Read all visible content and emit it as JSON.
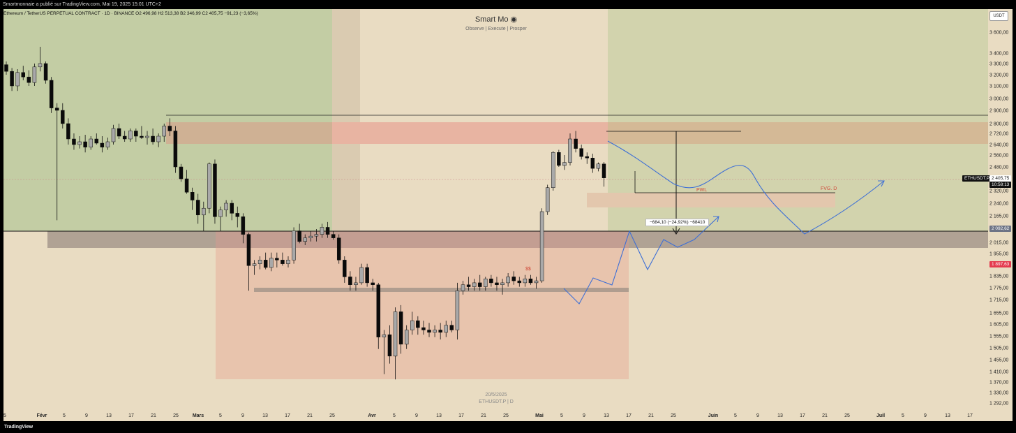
{
  "header": {
    "published": "Smartmonnaie a publié sur TradingView.com, Mai 19, 2025 15:01 UTC+2"
  },
  "symbol": {
    "title": "Ethereum / TetherUS PERPETUAL CONTRACT · 1D · BINANCE   O2 496,98   H2 513,38   B2 346,99   C2 405,75   −91,23 (−3,65%)"
  },
  "watermark": {
    "brand": "Smart Mo ◉",
    "tagline": "Observe |  Execute |  Prosper",
    "date": "20/5/2025",
    "symbol_tf": "ETHUSDT.P | D"
  },
  "ui": {
    "currency": "USDT"
  },
  "annotations": {
    "pwl": "PWL",
    "fvg": "FVG. D",
    "ss": "$$",
    "measure": "−684,10 (−24,92%) −68410"
  },
  "price_tags": {
    "symbol": "ETHUSDT.P",
    "last": "2 405,75",
    "countdown": "10:58:13",
    "level_grey": "2 092,62",
    "level_red": "1 897,63"
  },
  "footer": {
    "brand": "TradingView"
  },
  "colors": {
    "bull": "#a9a9a9",
    "bear": "#0a0a0a",
    "projection": "#3d6fd6",
    "zone_green": "#c3cda4",
    "zone_red": "#e8c4ad",
    "annotation": "#d04a3a"
  },
  "chart_data": {
    "type": "candlestick",
    "title": "Ethereum / TetherUS PERPETUAL CONTRACT · 1D · BINANCE",
    "xlabel": "",
    "ylabel": "",
    "ylim": [
      1230,
      3700
    ],
    "y_ticks": [
      "3 600,00",
      "3 400,00",
      "3 300,00",
      "3 200,00",
      "3 100,00",
      "3 000,00",
      "2 900,00",
      "2 800,00",
      "2 720,00",
      "2 640,00",
      "2 560,00",
      "2 480,00",
      "2 400,00",
      "2 320,00",
      "2 240,00",
      "2 165,00",
      "2 090,00",
      "2 015,00",
      "1 955,00",
      "1 895,00",
      "1 835,00",
      "1 775,00",
      "1 715,00",
      "1 655,00",
      "1 605,00",
      "1 555,00",
      "1 505,00",
      "1 455,00",
      "1 410,00",
      "1 370,00",
      "1 330,00",
      "1 292,00"
    ],
    "x_ticks": [
      {
        "label": "5",
        "major": false
      },
      {
        "label": "Févr",
        "major": true
      },
      {
        "label": "5",
        "major": false
      },
      {
        "label": "9",
        "major": false
      },
      {
        "label": "13",
        "major": false
      },
      {
        "label": "17",
        "major": false
      },
      {
        "label": "21",
        "major": false
      },
      {
        "label": "25",
        "major": false
      },
      {
        "label": "Mars",
        "major": true
      },
      {
        "label": "5",
        "major": false
      },
      {
        "label": "9",
        "major": false
      },
      {
        "label": "13",
        "major": false
      },
      {
        "label": "17",
        "major": false
      },
      {
        "label": "21",
        "major": false
      },
      {
        "label": "25",
        "major": false
      },
      {
        "label": "Avr",
        "major": true
      },
      {
        "label": "5",
        "major": false
      },
      {
        "label": "9",
        "major": false
      },
      {
        "label": "13",
        "major": false
      },
      {
        "label": "17",
        "major": false
      },
      {
        "label": "21",
        "major": false
      },
      {
        "label": "25",
        "major": false
      },
      {
        "label": "Mai",
        "major": true
      },
      {
        "label": "5",
        "major": false
      },
      {
        "label": "9",
        "major": false
      },
      {
        "label": "13",
        "major": false
      },
      {
        "label": "17",
        "major": false
      },
      {
        "label": "21",
        "major": false
      },
      {
        "label": "25",
        "major": false
      },
      {
        "label": "Juin",
        "major": true
      },
      {
        "label": "5",
        "major": false
      },
      {
        "label": "9",
        "major": false
      },
      {
        "label": "13",
        "major": false
      },
      {
        "label": "17",
        "major": false
      },
      {
        "label": "21",
        "major": false
      },
      {
        "label": "25",
        "major": false
      },
      {
        "label": "Juil",
        "major": true
      },
      {
        "label": "5",
        "major": false
      },
      {
        "label": "9",
        "major": false
      },
      {
        "label": "13",
        "major": false
      },
      {
        "label": "17",
        "major": false
      }
    ],
    "candles": [
      {
        "o": 3290,
        "h": 3320,
        "l": 3200,
        "c": 3230
      },
      {
        "o": 3230,
        "h": 3260,
        "l": 3060,
        "c": 3100
      },
      {
        "o": 3100,
        "h": 3250,
        "l": 3060,
        "c": 3220
      },
      {
        "o": 3220,
        "h": 3280,
        "l": 3150,
        "c": 3180
      },
      {
        "o": 3180,
        "h": 3240,
        "l": 3100,
        "c": 3130
      },
      {
        "o": 3130,
        "h": 3300,
        "l": 3100,
        "c": 3270
      },
      {
        "o": 3270,
        "h": 3460,
        "l": 3230,
        "c": 3300
      },
      {
        "o": 3300,
        "h": 3320,
        "l": 3120,
        "c": 3150
      },
      {
        "o": 3150,
        "h": 3180,
        "l": 2880,
        "c": 2920
      },
      {
        "o": 2920,
        "h": 2960,
        "l": 2140,
        "c": 2900
      },
      {
        "o": 2900,
        "h": 2960,
        "l": 2760,
        "c": 2800
      },
      {
        "o": 2800,
        "h": 2840,
        "l": 2640,
        "c": 2680
      },
      {
        "o": 2680,
        "h": 2720,
        "l": 2600,
        "c": 2640
      },
      {
        "o": 2640,
        "h": 2700,
        "l": 2610,
        "c": 2660
      },
      {
        "o": 2660,
        "h": 2710,
        "l": 2580,
        "c": 2620
      },
      {
        "o": 2620,
        "h": 2700,
        "l": 2600,
        "c": 2680
      },
      {
        "o": 2680,
        "h": 2720,
        "l": 2640,
        "c": 2650
      },
      {
        "o": 2650,
        "h": 2700,
        "l": 2580,
        "c": 2620
      },
      {
        "o": 2620,
        "h": 2690,
        "l": 2600,
        "c": 2660
      },
      {
        "o": 2660,
        "h": 2790,
        "l": 2640,
        "c": 2760
      },
      {
        "o": 2760,
        "h": 2800,
        "l": 2680,
        "c": 2700
      },
      {
        "o": 2700,
        "h": 2740,
        "l": 2660,
        "c": 2680
      },
      {
        "o": 2680,
        "h": 2760,
        "l": 2660,
        "c": 2740
      },
      {
        "o": 2740,
        "h": 2760,
        "l": 2660,
        "c": 2700
      },
      {
        "o": 2700,
        "h": 2780,
        "l": 2680,
        "c": 2690
      },
      {
        "o": 2690,
        "h": 2740,
        "l": 2640,
        "c": 2700
      },
      {
        "o": 2700,
        "h": 2760,
        "l": 2640,
        "c": 2660
      },
      {
        "o": 2660,
        "h": 2720,
        "l": 2620,
        "c": 2700
      },
      {
        "o": 2700,
        "h": 2800,
        "l": 2660,
        "c": 2780
      },
      {
        "o": 2780,
        "h": 2840,
        "l": 2700,
        "c": 2740
      },
      {
        "o": 2740,
        "h": 2780,
        "l": 2440,
        "c": 2480
      },
      {
        "o": 2480,
        "h": 2500,
        "l": 2380,
        "c": 2400
      },
      {
        "o": 2400,
        "h": 2460,
        "l": 2300,
        "c": 2310
      },
      {
        "o": 2310,
        "h": 2340,
        "l": 2200,
        "c": 2260
      },
      {
        "o": 2260,
        "h": 2300,
        "l": 2120,
        "c": 2170
      },
      {
        "o": 2170,
        "h": 2250,
        "l": 2080,
        "c": 2210
      },
      {
        "o": 2210,
        "h": 2510,
        "l": 2180,
        "c": 2500
      },
      {
        "o": 2500,
        "h": 2530,
        "l": 2120,
        "c": 2160
      },
      {
        "o": 2160,
        "h": 2220,
        "l": 2080,
        "c": 2200
      },
      {
        "o": 2200,
        "h": 2260,
        "l": 2160,
        "c": 2240
      },
      {
        "o": 2240,
        "h": 2260,
        "l": 2140,
        "c": 2180
      },
      {
        "o": 2180,
        "h": 2220,
        "l": 2100,
        "c": 2160
      },
      {
        "o": 2160,
        "h": 2180,
        "l": 2010,
        "c": 2060
      },
      {
        "o": 2060,
        "h": 2070,
        "l": 1760,
        "c": 1890
      },
      {
        "o": 1890,
        "h": 1920,
        "l": 1840,
        "c": 1900
      },
      {
        "o": 1900,
        "h": 1940,
        "l": 1870,
        "c": 1920
      },
      {
        "o": 1920,
        "h": 1960,
        "l": 1870,
        "c": 1880
      },
      {
        "o": 1880,
        "h": 1960,
        "l": 1860,
        "c": 1930
      },
      {
        "o": 1930,
        "h": 1960,
        "l": 1880,
        "c": 1920
      },
      {
        "o": 1920,
        "h": 1960,
        "l": 1890,
        "c": 1900
      },
      {
        "o": 1900,
        "h": 1940,
        "l": 1880,
        "c": 1920
      },
      {
        "o": 1920,
        "h": 2100,
        "l": 1900,
        "c": 2080
      },
      {
        "o": 2080,
        "h": 2120,
        "l": 2010,
        "c": 2020
      },
      {
        "o": 2020,
        "h": 2060,
        "l": 2000,
        "c": 2040
      },
      {
        "o": 2040,
        "h": 2080,
        "l": 2020,
        "c": 2050
      },
      {
        "o": 2050,
        "h": 2090,
        "l": 2020,
        "c": 2060
      },
      {
        "o": 2060,
        "h": 2120,
        "l": 2040,
        "c": 2100
      },
      {
        "o": 2100,
        "h": 2130,
        "l": 2040,
        "c": 2060
      },
      {
        "o": 2060,
        "h": 2080,
        "l": 2030,
        "c": 2040
      },
      {
        "o": 2040,
        "h": 2060,
        "l": 1900,
        "c": 1920
      },
      {
        "o": 1920,
        "h": 1940,
        "l": 1800,
        "c": 1830
      },
      {
        "o": 1830,
        "h": 1860,
        "l": 1760,
        "c": 1790
      },
      {
        "o": 1790,
        "h": 1830,
        "l": 1760,
        "c": 1800
      },
      {
        "o": 1800,
        "h": 1900,
        "l": 1790,
        "c": 1880
      },
      {
        "o": 1880,
        "h": 1900,
        "l": 1780,
        "c": 1800
      },
      {
        "o": 1800,
        "h": 1820,
        "l": 1760,
        "c": 1790
      },
      {
        "o": 1790,
        "h": 1800,
        "l": 1500,
        "c": 1550
      },
      {
        "o": 1550,
        "h": 1580,
        "l": 1400,
        "c": 1560
      },
      {
        "o": 1560,
        "h": 1600,
        "l": 1440,
        "c": 1470
      },
      {
        "o": 1470,
        "h": 1680,
        "l": 1380,
        "c": 1660
      },
      {
        "o": 1660,
        "h": 1690,
        "l": 1480,
        "c": 1520
      },
      {
        "o": 1520,
        "h": 1600,
        "l": 1500,
        "c": 1580
      },
      {
        "o": 1580,
        "h": 1660,
        "l": 1560,
        "c": 1620
      },
      {
        "o": 1620,
        "h": 1640,
        "l": 1560,
        "c": 1590
      },
      {
        "o": 1590,
        "h": 1620,
        "l": 1560,
        "c": 1580
      },
      {
        "o": 1580,
        "h": 1610,
        "l": 1550,
        "c": 1570
      },
      {
        "o": 1570,
        "h": 1600,
        "l": 1550,
        "c": 1580
      },
      {
        "o": 1580,
        "h": 1610,
        "l": 1540,
        "c": 1570
      },
      {
        "o": 1570,
        "h": 1620,
        "l": 1550,
        "c": 1600
      },
      {
        "o": 1600,
        "h": 1620,
        "l": 1570,
        "c": 1580
      },
      {
        "o": 1580,
        "h": 1800,
        "l": 1540,
        "c": 1760
      },
      {
        "o": 1760,
        "h": 1810,
        "l": 1740,
        "c": 1790
      },
      {
        "o": 1790,
        "h": 1830,
        "l": 1760,
        "c": 1780
      },
      {
        "o": 1780,
        "h": 1820,
        "l": 1760,
        "c": 1800
      },
      {
        "o": 1800,
        "h": 1840,
        "l": 1760,
        "c": 1780
      },
      {
        "o": 1780,
        "h": 1830,
        "l": 1760,
        "c": 1820
      },
      {
        "o": 1820,
        "h": 1840,
        "l": 1780,
        "c": 1800
      },
      {
        "o": 1800,
        "h": 1830,
        "l": 1760,
        "c": 1790
      },
      {
        "o": 1790,
        "h": 1820,
        "l": 1740,
        "c": 1800
      },
      {
        "o": 1800,
        "h": 1850,
        "l": 1780,
        "c": 1830
      },
      {
        "o": 1830,
        "h": 1860,
        "l": 1790,
        "c": 1810
      },
      {
        "o": 1810,
        "h": 1830,
        "l": 1780,
        "c": 1800
      },
      {
        "o": 1800,
        "h": 1840,
        "l": 1780,
        "c": 1820
      },
      {
        "o": 1820,
        "h": 1840,
        "l": 1790,
        "c": 1800
      },
      {
        "o": 1800,
        "h": 1830,
        "l": 1770,
        "c": 1810
      },
      {
        "o": 1810,
        "h": 2210,
        "l": 1800,
        "c": 2190
      },
      {
        "o": 2190,
        "h": 2360,
        "l": 2170,
        "c": 2340
      },
      {
        "o": 2340,
        "h": 2590,
        "l": 2320,
        "c": 2580
      },
      {
        "o": 2580,
        "h": 2600,
        "l": 2480,
        "c": 2490
      },
      {
        "o": 2490,
        "h": 2560,
        "l": 2460,
        "c": 2510
      },
      {
        "o": 2510,
        "h": 2720,
        "l": 2490,
        "c": 2680
      },
      {
        "o": 2680,
        "h": 2740,
        "l": 2580,
        "c": 2610
      },
      {
        "o": 2610,
        "h": 2640,
        "l": 2530,
        "c": 2550
      },
      {
        "o": 2550,
        "h": 2580,
        "l": 2500,
        "c": 2540
      },
      {
        "o": 2540,
        "h": 2570,
        "l": 2440,
        "c": 2470
      },
      {
        "o": 2470,
        "h": 2510,
        "l": 2450,
        "c": 2500
      },
      {
        "o": 2500,
        "h": 2513,
        "l": 2347,
        "c": 2406
      }
    ]
  }
}
